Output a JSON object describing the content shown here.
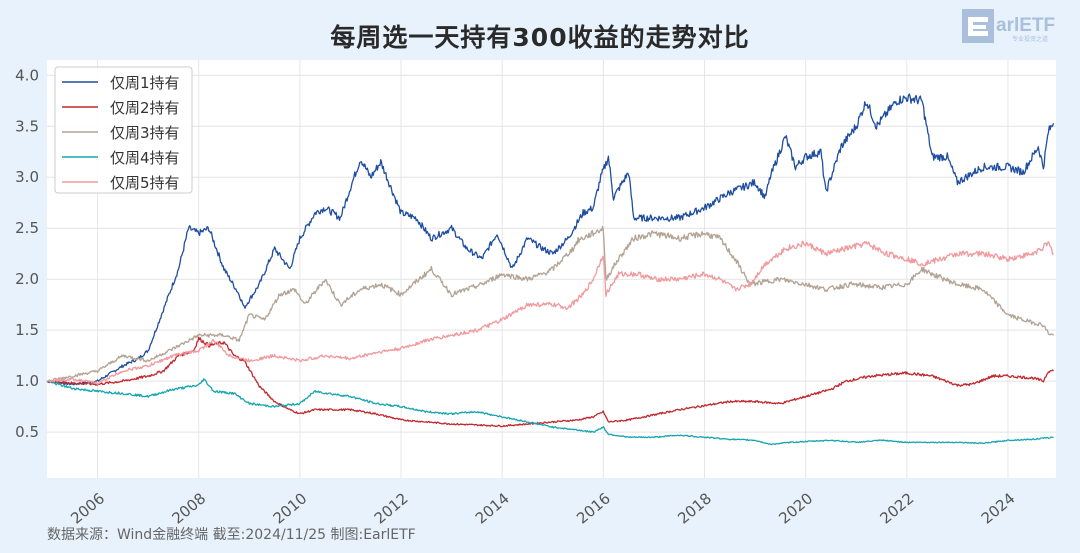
{
  "chart_data": {
    "type": "line",
    "title": "每周选一天持有300收益的走势对比",
    "xlabel": "",
    "ylabel": "",
    "xlim": [
      2005.0,
      2024.95
    ],
    "ylim": [
      0.05,
      4.15
    ],
    "x_ticks": [
      "2006",
      "2008",
      "2010",
      "2012",
      "2014",
      "2016",
      "2018",
      "2020",
      "2022",
      "2024"
    ],
    "y_ticks": [
      "0.5",
      "1.0",
      "1.5",
      "2.0",
      "2.5",
      "3.0",
      "3.5",
      "4.0"
    ],
    "grid": true,
    "legend_position": "top-left",
    "series": [
      {
        "name": "仅周1持有",
        "color": "#1f4ea0",
        "points": [
          [
            2005,
            1.0
          ],
          [
            2005.5,
            0.97
          ],
          [
            2006,
            1.0
          ],
          [
            2006.5,
            1.15
          ],
          [
            2006.8,
            1.22
          ],
          [
            2007,
            1.3
          ],
          [
            2007.3,
            1.7
          ],
          [
            2007.6,
            2.1
          ],
          [
            2007.8,
            2.5
          ],
          [
            2008,
            2.45
          ],
          [
            2008.2,
            2.5
          ],
          [
            2008.5,
            2.1
          ],
          [
            2008.8,
            1.85
          ],
          [
            2008.9,
            1.72
          ],
          [
            2009.2,
            1.95
          ],
          [
            2009.5,
            2.3
          ],
          [
            2009.8,
            2.1
          ],
          [
            2010,
            2.4
          ],
          [
            2010.3,
            2.65
          ],
          [
            2010.5,
            2.7
          ],
          [
            2010.8,
            2.6
          ],
          [
            2011,
            2.9
          ],
          [
            2011.2,
            3.18
          ],
          [
            2011.4,
            3.0
          ],
          [
            2011.6,
            3.15
          ],
          [
            2011.8,
            2.9
          ],
          [
            2012,
            2.65
          ],
          [
            2012.3,
            2.6
          ],
          [
            2012.6,
            2.4
          ],
          [
            2013,
            2.5
          ],
          [
            2013.3,
            2.3
          ],
          [
            2013.6,
            2.2
          ],
          [
            2013.9,
            2.45
          ],
          [
            2014.2,
            2.1
          ],
          [
            2014.5,
            2.4
          ],
          [
            2014.8,
            2.3
          ],
          [
            2015,
            2.25
          ],
          [
            2015.3,
            2.4
          ],
          [
            2015.6,
            2.65
          ],
          [
            2015.8,
            2.7
          ],
          [
            2015.95,
            3.0
          ],
          [
            2016.1,
            3.2
          ],
          [
            2016.2,
            2.8
          ],
          [
            2016.5,
            3.05
          ],
          [
            2016.6,
            2.6
          ],
          [
            2017,
            2.6
          ],
          [
            2017.5,
            2.6
          ],
          [
            2018,
            2.7
          ],
          [
            2018.5,
            2.85
          ],
          [
            2019,
            2.95
          ],
          [
            2019.2,
            2.8
          ],
          [
            2019.3,
            3.0
          ],
          [
            2019.6,
            3.4
          ],
          [
            2019.8,
            3.1
          ],
          [
            2020,
            3.2
          ],
          [
            2020.3,
            3.25
          ],
          [
            2020.4,
            2.85
          ],
          [
            2020.7,
            3.3
          ],
          [
            2021,
            3.5
          ],
          [
            2021.2,
            3.75
          ],
          [
            2021.4,
            3.5
          ],
          [
            2021.8,
            3.75
          ],
          [
            2022,
            3.78
          ],
          [
            2022.3,
            3.75
          ],
          [
            2022.5,
            3.2
          ],
          [
            2022.8,
            3.2
          ],
          [
            2023,
            2.95
          ],
          [
            2023.5,
            3.1
          ],
          [
            2024,
            3.1
          ],
          [
            2024.3,
            3.05
          ],
          [
            2024.6,
            3.3
          ],
          [
            2024.7,
            3.1
          ],
          [
            2024.8,
            3.45
          ],
          [
            2024.9,
            3.53
          ]
        ]
      },
      {
        "name": "仅周2持有",
        "color": "#c0282d",
        "points": [
          [
            2005,
            1.0
          ],
          [
            2005.5,
            0.98
          ],
          [
            2006,
            0.97
          ],
          [
            2006.5,
            1.0
          ],
          [
            2007,
            1.05
          ],
          [
            2007.3,
            1.1
          ],
          [
            2007.6,
            1.25
          ],
          [
            2007.9,
            1.3
          ],
          [
            2008,
            1.42
          ],
          [
            2008.2,
            1.35
          ],
          [
            2008.5,
            1.38
          ],
          [
            2008.7,
            1.25
          ],
          [
            2008.9,
            1.2
          ],
          [
            2009.2,
            0.95
          ],
          [
            2009.5,
            0.8
          ],
          [
            2009.8,
            0.72
          ],
          [
            2010,
            0.68
          ],
          [
            2010.3,
            0.72
          ],
          [
            2011,
            0.72
          ],
          [
            2011.5,
            0.68
          ],
          [
            2012,
            0.62
          ],
          [
            2012.5,
            0.6
          ],
          [
            2013,
            0.58
          ],
          [
            2013.5,
            0.57
          ],
          [
            2014,
            0.56
          ],
          [
            2014.5,
            0.58
          ],
          [
            2015,
            0.6
          ],
          [
            2015.5,
            0.62
          ],
          [
            2015.8,
            0.65
          ],
          [
            2016,
            0.7
          ],
          [
            2016.1,
            0.6
          ],
          [
            2016.5,
            0.62
          ],
          [
            2017,
            0.67
          ],
          [
            2017.5,
            0.72
          ],
          [
            2018,
            0.76
          ],
          [
            2018.5,
            0.8
          ],
          [
            2019,
            0.8
          ],
          [
            2019.5,
            0.78
          ],
          [
            2020,
            0.85
          ],
          [
            2020.5,
            0.92
          ],
          [
            2020.8,
            1.0
          ],
          [
            2021.3,
            1.05
          ],
          [
            2022,
            1.08
          ],
          [
            2022.5,
            1.05
          ],
          [
            2023,
            0.96
          ],
          [
            2023.3,
            0.97
          ],
          [
            2023.7,
            1.05
          ],
          [
            2024,
            1.05
          ],
          [
            2024.5,
            1.03
          ],
          [
            2024.7,
            1.0
          ],
          [
            2024.8,
            1.1
          ],
          [
            2024.9,
            1.1
          ]
        ]
      },
      {
        "name": "仅周3持有",
        "color": "#b2a394",
        "points": [
          [
            2005,
            1.0
          ],
          [
            2005.5,
            1.05
          ],
          [
            2006,
            1.1
          ],
          [
            2006.5,
            1.25
          ],
          [
            2007,
            1.2
          ],
          [
            2007.5,
            1.32
          ],
          [
            2008,
            1.45
          ],
          [
            2008.5,
            1.45
          ],
          [
            2008.8,
            1.4
          ],
          [
            2009,
            1.65
          ],
          [
            2009.3,
            1.6
          ],
          [
            2009.6,
            1.85
          ],
          [
            2009.9,
            1.9
          ],
          [
            2010.1,
            1.75
          ],
          [
            2010.5,
            2.0
          ],
          [
            2010.8,
            1.75
          ],
          [
            2011.2,
            1.9
          ],
          [
            2011.6,
            1.95
          ],
          [
            2012,
            1.85
          ],
          [
            2012.6,
            2.1
          ],
          [
            2013,
            1.85
          ],
          [
            2013.6,
            1.95
          ],
          [
            2014,
            2.05
          ],
          [
            2014.5,
            2.0
          ],
          [
            2014.8,
            2.05
          ],
          [
            2015,
            2.1
          ],
          [
            2015.4,
            2.3
          ],
          [
            2015.5,
            2.38
          ],
          [
            2015.8,
            2.45
          ],
          [
            2016,
            2.5
          ],
          [
            2016.05,
            2.0
          ],
          [
            2016.3,
            2.2
          ],
          [
            2016.6,
            2.4
          ],
          [
            2017,
            2.45
          ],
          [
            2017.5,
            2.4
          ],
          [
            2018,
            2.45
          ],
          [
            2018.3,
            2.4
          ],
          [
            2018.6,
            2.2
          ],
          [
            2018.9,
            1.95
          ],
          [
            2019.5,
            2.0
          ],
          [
            2020,
            1.95
          ],
          [
            2020.4,
            1.9
          ],
          [
            2020.9,
            1.95
          ],
          [
            2021.5,
            1.92
          ],
          [
            2022,
            1.95
          ],
          [
            2022.3,
            2.1
          ],
          [
            2022.5,
            2.05
          ],
          [
            2023,
            1.95
          ],
          [
            2023.5,
            1.9
          ],
          [
            2024,
            1.65
          ],
          [
            2024.3,
            1.6
          ],
          [
            2024.7,
            1.55
          ],
          [
            2024.8,
            1.47
          ],
          [
            2024.9,
            1.45
          ]
        ]
      },
      {
        "name": "仅周4持有",
        "color": "#17a5b0",
        "points": [
          [
            2005,
            1.0
          ],
          [
            2005.5,
            0.93
          ],
          [
            2006,
            0.9
          ],
          [
            2006.5,
            0.88
          ],
          [
            2007,
            0.85
          ],
          [
            2007.5,
            0.92
          ],
          [
            2008,
            0.96
          ],
          [
            2008.1,
            1.02
          ],
          [
            2008.3,
            0.9
          ],
          [
            2008.7,
            0.88
          ],
          [
            2009,
            0.78
          ],
          [
            2009.5,
            0.75
          ],
          [
            2010,
            0.78
          ],
          [
            2010.3,
            0.9
          ],
          [
            2010.7,
            0.87
          ],
          [
            2011,
            0.85
          ],
          [
            2011.5,
            0.78
          ],
          [
            2012,
            0.75
          ],
          [
            2012.5,
            0.7
          ],
          [
            2013,
            0.68
          ],
          [
            2013.5,
            0.7
          ],
          [
            2014,
            0.65
          ],
          [
            2014.5,
            0.6
          ],
          [
            2015,
            0.55
          ],
          [
            2015.5,
            0.52
          ],
          [
            2015.8,
            0.5
          ],
          [
            2016,
            0.55
          ],
          [
            2016.1,
            0.48
          ],
          [
            2016.5,
            0.45
          ],
          [
            2017,
            0.45
          ],
          [
            2017.5,
            0.47
          ],
          [
            2018,
            0.45
          ],
          [
            2018.5,
            0.43
          ],
          [
            2019,
            0.42
          ],
          [
            2019.3,
            0.38
          ],
          [
            2019.7,
            0.4
          ],
          [
            2020.5,
            0.42
          ],
          [
            2021,
            0.4
          ],
          [
            2021.5,
            0.42
          ],
          [
            2022,
            0.4
          ],
          [
            2023,
            0.4
          ],
          [
            2023.5,
            0.39
          ],
          [
            2024,
            0.42
          ],
          [
            2024.5,
            0.43
          ],
          [
            2024.9,
            0.45
          ]
        ]
      },
      {
        "name": "仅周5持有",
        "color": "#f09a9e",
        "points": [
          [
            2005,
            1.0
          ],
          [
            2005.5,
            1.02
          ],
          [
            2006,
            0.98
          ],
          [
            2006.5,
            1.1
          ],
          [
            2007,
            1.15
          ],
          [
            2007.5,
            1.25
          ],
          [
            2008,
            1.3
          ],
          [
            2008.3,
            1.4
          ],
          [
            2008.6,
            1.25
          ],
          [
            2009,
            1.2
          ],
          [
            2009.5,
            1.25
          ],
          [
            2010,
            1.2
          ],
          [
            2010.5,
            1.25
          ],
          [
            2011,
            1.22
          ],
          [
            2011.5,
            1.28
          ],
          [
            2012,
            1.32
          ],
          [
            2012.5,
            1.4
          ],
          [
            2013,
            1.45
          ],
          [
            2013.5,
            1.5
          ],
          [
            2014,
            1.6
          ],
          [
            2014.5,
            1.75
          ],
          [
            2015,
            1.75
          ],
          [
            2015.3,
            1.72
          ],
          [
            2015.6,
            1.85
          ],
          [
            2015.8,
            2.0
          ],
          [
            2016,
            2.25
          ],
          [
            2016.05,
            1.85
          ],
          [
            2016.3,
            2.05
          ],
          [
            2016.7,
            2.05
          ],
          [
            2017,
            2.0
          ],
          [
            2017.5,
            2.0
          ],
          [
            2018,
            2.05
          ],
          [
            2018.3,
            2.0
          ],
          [
            2018.6,
            1.9
          ],
          [
            2018.9,
            1.95
          ],
          [
            2019.2,
            2.15
          ],
          [
            2019.6,
            2.3
          ],
          [
            2020,
            2.35
          ],
          [
            2020.4,
            2.25
          ],
          [
            2020.8,
            2.3
          ],
          [
            2021.2,
            2.35
          ],
          [
            2021.6,
            2.25
          ],
          [
            2022,
            2.2
          ],
          [
            2022.3,
            2.15
          ],
          [
            2022.7,
            2.2
          ],
          [
            2023,
            2.25
          ],
          [
            2023.5,
            2.25
          ],
          [
            2024,
            2.2
          ],
          [
            2024.5,
            2.25
          ],
          [
            2024.8,
            2.35
          ],
          [
            2024.9,
            2.25
          ]
        ]
      }
    ]
  },
  "footer": {
    "source": "数据来源：Wind金融终端 截至:2024/11/25 制图:EarlETF"
  },
  "logo": {
    "text": "EarlETF",
    "subtext": "专业投资之道"
  }
}
